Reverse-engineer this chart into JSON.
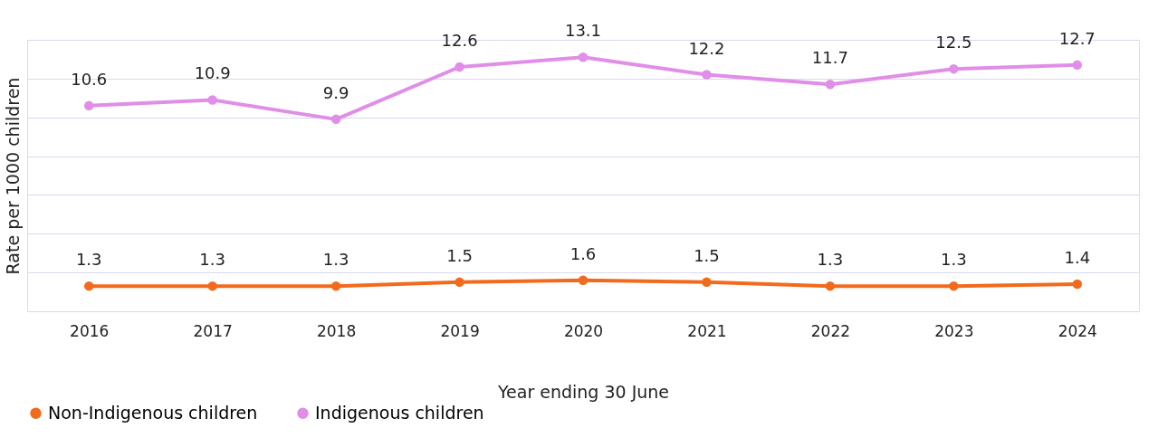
{
  "chart_data": {
    "type": "line",
    "xlabel": "Year ending 30 June",
    "ylabel": "Rate per 1000 children",
    "categories": [
      "2016",
      "2017",
      "2018",
      "2019",
      "2020",
      "2021",
      "2022",
      "2023",
      "2024"
    ],
    "series": [
      {
        "name": "Non-Indigenous children",
        "color": "#f26b1d",
        "values": [
          1.3,
          1.3,
          1.3,
          1.5,
          1.6,
          1.5,
          1.3,
          1.3,
          1.4
        ]
      },
      {
        "name": "Indigenous children",
        "color": "#e08ee8",
        "values": [
          10.6,
          10.9,
          9.9,
          12.6,
          13.1,
          12.2,
          11.7,
          12.5,
          12.7
        ]
      }
    ],
    "ylim": [
      0,
      14
    ],
    "yticks": [
      {
        "value": 0,
        "label": null
      },
      {
        "value": 2,
        "label": null
      },
      {
        "value": 4,
        "label": null
      },
      {
        "value": 6,
        "label": null
      },
      {
        "value": 8,
        "label": null
      },
      {
        "value": 10,
        "label": null
      },
      {
        "value": 12,
        "label": null
      },
      {
        "value": 14,
        "label": null
      }
    ],
    "tick_labels": "x",
    "grid": "y",
    "legend": "bottom",
    "marker": "circle",
    "line_style": "solid",
    "data_labels": true
  }
}
